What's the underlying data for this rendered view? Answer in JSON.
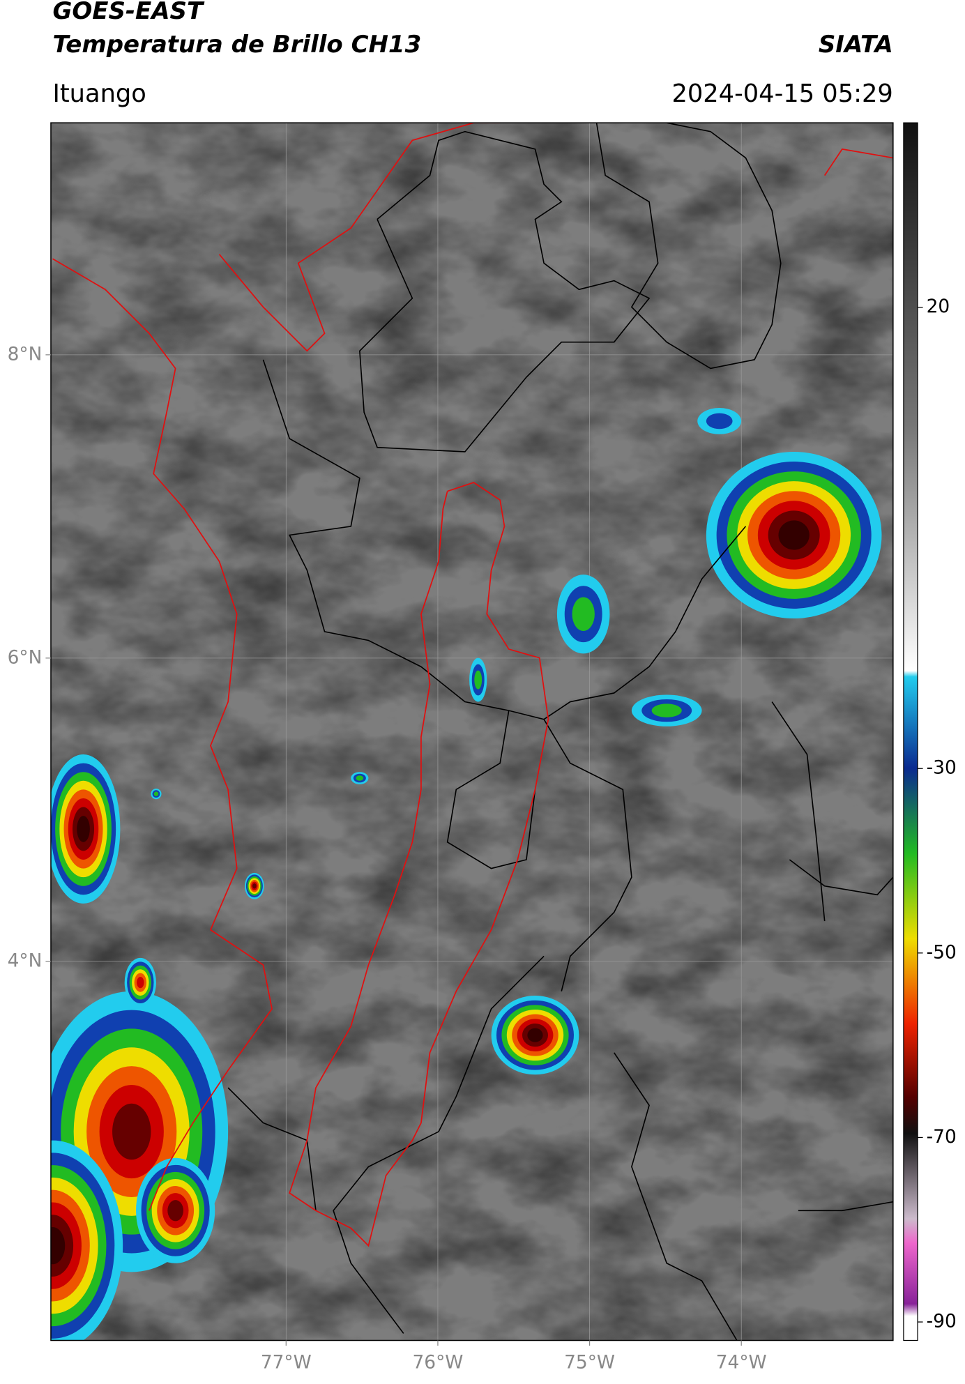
{
  "header": {
    "title": "GOES-EAST",
    "subtitle": "Temperatura de Brillo CH13",
    "brand": "SIATA",
    "location": "Ituango",
    "datetime": "2024-04-15 05:29"
  },
  "map": {
    "xlim": [
      -78.55,
      -73.0
    ],
    "ylim": [
      1.5,
      9.53
    ],
    "xticks": [
      {
        "value": -77,
        "label": "77°W"
      },
      {
        "value": -76,
        "label": "76°W"
      },
      {
        "value": -75,
        "label": "75°W"
      },
      {
        "value": -74,
        "label": "74°W"
      }
    ],
    "yticks": [
      {
        "value": 8,
        "label": "8°N"
      },
      {
        "value": 6,
        "label": "6°N"
      },
      {
        "value": 4,
        "label": "4°N"
      }
    ]
  },
  "colorbar": {
    "vlim": [
      -92,
      40
    ],
    "ticks": [
      20,
      -30,
      -50,
      -70,
      -90
    ]
  }
}
